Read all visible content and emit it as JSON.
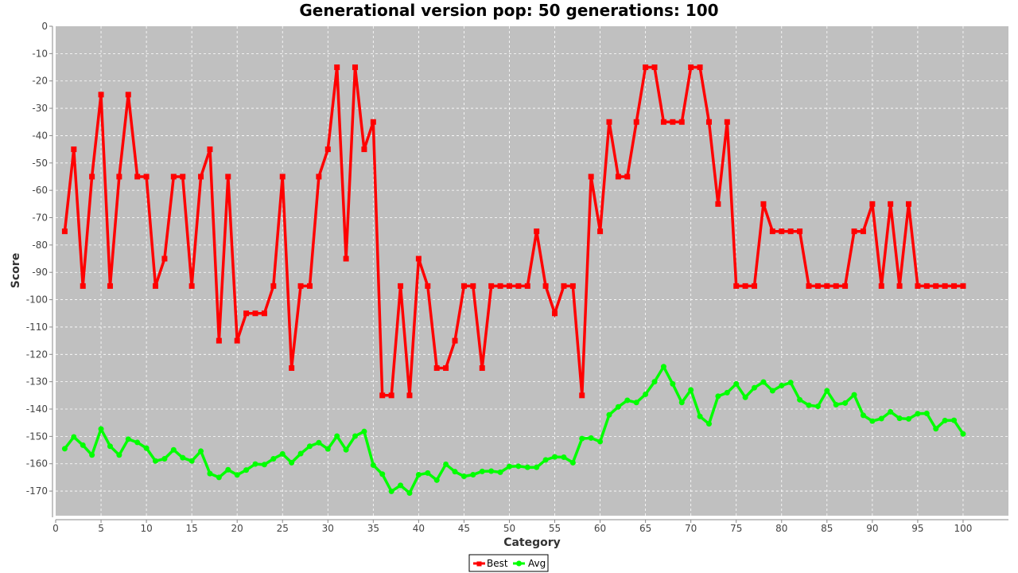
{
  "chart_data": {
    "type": "line",
    "title": "Generational version pop: 50 generations: 100",
    "xlabel": "Category",
    "ylabel": "Score",
    "xlim": [
      0,
      105
    ],
    "ylim": [
      -179,
      0
    ],
    "x_ticks": [
      0,
      5,
      10,
      15,
      20,
      25,
      30,
      35,
      40,
      45,
      50,
      55,
      60,
      65,
      70,
      75,
      80,
      85,
      90,
      95,
      100
    ],
    "y_ticks": [
      0,
      -10,
      -20,
      -30,
      -40,
      -50,
      -60,
      -70,
      -80,
      -90,
      -100,
      -110,
      -120,
      -130,
      -140,
      -150,
      -160,
      -170
    ],
    "grid": true,
    "legend_position": "bottom",
    "plot_background": "#c0c0c0",
    "x": [
      1,
      2,
      3,
      4,
      5,
      6,
      7,
      8,
      9,
      10,
      11,
      12,
      13,
      14,
      15,
      16,
      17,
      18,
      19,
      20,
      21,
      22,
      23,
      24,
      25,
      26,
      27,
      28,
      29,
      30,
      31,
      32,
      33,
      34,
      35,
      36,
      37,
      38,
      39,
      40,
      41,
      42,
      43,
      44,
      45,
      46,
      47,
      48,
      49,
      50,
      51,
      52,
      53,
      54,
      55,
      56,
      57,
      58,
      59,
      60,
      61,
      62,
      63,
      64,
      65,
      66,
      67,
      68,
      69,
      70,
      71,
      72,
      73,
      74,
      75,
      76,
      77,
      78,
      79,
      80,
      81,
      82,
      83,
      84,
      85,
      86,
      87,
      88,
      89,
      90,
      91,
      92,
      93,
      94,
      95,
      96,
      97,
      98,
      99,
      100
    ],
    "series": [
      {
        "name": "Best",
        "color": "#ff0000",
        "marker": "square",
        "values": [
          -75,
          -45,
          -95,
          -55,
          -25,
          -95,
          -55,
          -25,
          -55,
          -55,
          -95,
          -85,
          -55,
          -55,
          -95,
          -55,
          -45,
          -115,
          -55,
          -115,
          -105,
          -105,
          -105,
          -95,
          -55,
          -125,
          -95,
          -95,
          -55,
          -45,
          -15,
          -85,
          -15,
          -45,
          -35,
          -135,
          -135,
          -95,
          -135,
          -85,
          -95,
          -125,
          -125,
          -115,
          -95,
          -95,
          -125,
          -95,
          -95,
          -95,
          -95,
          -95,
          -75,
          -95,
          -105,
          -95,
          -95,
          -135,
          -55,
          -75,
          -35,
          -55,
          -55,
          -35,
          -15,
          -15,
          -35,
          -35,
          -35,
          -15,
          -15,
          -35,
          -65,
          -35,
          -95,
          -95,
          -95,
          -65,
          -75,
          -75,
          -75,
          -75,
          -95,
          -95,
          -95,
          -95,
          -95,
          -75,
          -75,
          -65,
          -95,
          -65,
          -95,
          -65,
          -95,
          -95,
          -95,
          -95,
          -95,
          -95
        ]
      },
      {
        "name": "Avg",
        "color": "#00ff00",
        "marker": "circle",
        "values": [
          -154.5,
          -150.2,
          -153.2,
          -156.8,
          -147.3,
          -153.6,
          -156.8,
          -151.0,
          -152.2,
          -154.3,
          -159.0,
          -158.2,
          -154.9,
          -157.8,
          -159.0,
          -155.4,
          -163.6,
          -165.0,
          -162.2,
          -164.1,
          -162.3,
          -160.1,
          -160.3,
          -158.2,
          -156.4,
          -159.6,
          -156.3,
          -153.6,
          -152.3,
          -154.6,
          -149.9,
          -154.9,
          -149.9,
          -148.2,
          -160.5,
          -163.8,
          -170.1,
          -167.9,
          -170.7,
          -164.0,
          -163.4,
          -166.0,
          -160.2,
          -162.9,
          -164.6,
          -164.0,
          -162.8,
          -162.7,
          -163.1,
          -161.0,
          -160.9,
          -161.3,
          -161.3,
          -158.6,
          -157.5,
          -157.6,
          -159.6,
          -150.8,
          -150.6,
          -151.9,
          -142.1,
          -139.2,
          -136.8,
          -137.6,
          -134.6,
          -130.0,
          -124.5,
          -130.8,
          -137.6,
          -133.0,
          -142.7,
          -145.4,
          -135.3,
          -134.0,
          -130.8,
          -135.7,
          -132.2,
          -130.1,
          -133.3,
          -131.4,
          -130.3,
          -136.6,
          -138.6,
          -139.0,
          -133.3,
          -138.4,
          -137.8,
          -134.8,
          -142.3,
          -144.4,
          -143.5,
          -141.0,
          -143.4,
          -143.6,
          -141.7,
          -141.6,
          -147.2,
          -144.2,
          -144.1,
          -149.1
        ]
      }
    ]
  }
}
